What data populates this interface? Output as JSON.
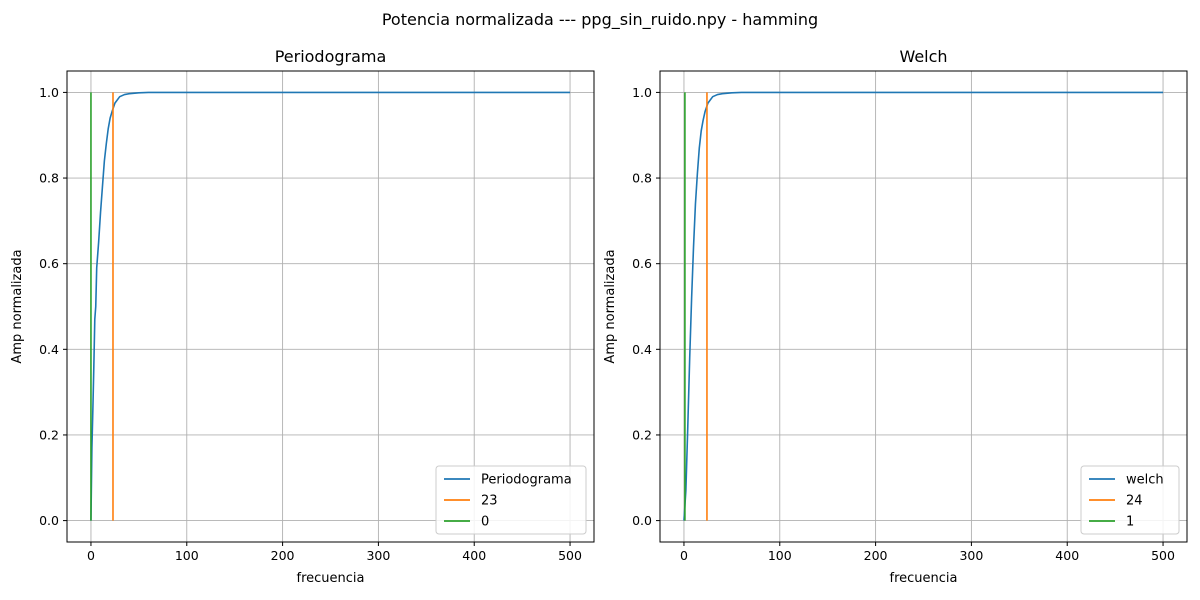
{
  "figure": {
    "suptitle": "Potencia normalizada --- ppg_sin_ruido.npy - hamming"
  },
  "chart_data": [
    {
      "type": "line",
      "title": "Periodograma",
      "xlabel": "frecuencia",
      "ylabel": "Amp normalizada",
      "xlim": [
        -25,
        525
      ],
      "ylim": [
        -0.05,
        1.05
      ],
      "xticks": [
        0,
        100,
        200,
        300,
        400,
        500
      ],
      "yticks": [
        0.0,
        0.2,
        0.4,
        0.6,
        0.8,
        1.0
      ],
      "grid": true,
      "legend_position": "lower-right",
      "series": [
        {
          "name": "Periodograma",
          "color": "#1f77b4",
          "x": [
            0,
            1,
            2,
            3,
            4,
            5,
            6,
            8,
            10,
            12,
            14,
            16,
            18,
            20,
            22,
            25,
            30,
            35,
            40,
            50,
            60,
            80,
            100,
            200,
            300,
            400,
            500
          ],
          "y": [
            0.0,
            0.17,
            0.26,
            0.36,
            0.47,
            0.5,
            0.59,
            0.65,
            0.72,
            0.78,
            0.84,
            0.88,
            0.915,
            0.94,
            0.955,
            0.975,
            0.99,
            0.995,
            0.997,
            0.999,
            1.0,
            1.0,
            1.0,
            1.0,
            1.0,
            1.0,
            1.0
          ]
        },
        {
          "name": "23",
          "color": "#ff7f0e",
          "x": [
            23,
            23
          ],
          "y": [
            0,
            1
          ]
        },
        {
          "name": "0",
          "color": "#2ca02c",
          "x": [
            0,
            0
          ],
          "y": [
            0,
            1
          ]
        }
      ]
    },
    {
      "type": "line",
      "title": "Welch",
      "xlabel": "frecuencia",
      "ylabel": "Amp normalizada",
      "xlim": [
        -25,
        525
      ],
      "ylim": [
        -0.05,
        1.05
      ],
      "xticks": [
        0,
        100,
        200,
        300,
        400,
        500
      ],
      "yticks": [
        0.0,
        0.2,
        0.4,
        0.6,
        0.8,
        1.0
      ],
      "grid": true,
      "legend_position": "lower-right",
      "series": [
        {
          "name": "welch",
          "color": "#1f77b4",
          "x": [
            0,
            2,
            4,
            6,
            8,
            10,
            12,
            14,
            16,
            18,
            20,
            22,
            25,
            30,
            35,
            40,
            50,
            60,
            80,
            100,
            200,
            300,
            400,
            500
          ],
          "y": [
            0.0,
            0.07,
            0.22,
            0.38,
            0.52,
            0.64,
            0.74,
            0.81,
            0.87,
            0.91,
            0.935,
            0.955,
            0.975,
            0.99,
            0.995,
            0.997,
            0.999,
            1.0,
            1.0,
            1.0,
            1.0,
            1.0,
            1.0,
            1.0
          ]
        },
        {
          "name": "24",
          "color": "#ff7f0e",
          "x": [
            24,
            24
          ],
          "y": [
            0,
            1
          ]
        },
        {
          "name": "1",
          "color": "#2ca02c",
          "x": [
            1,
            1
          ],
          "y": [
            0,
            1
          ]
        }
      ]
    }
  ]
}
